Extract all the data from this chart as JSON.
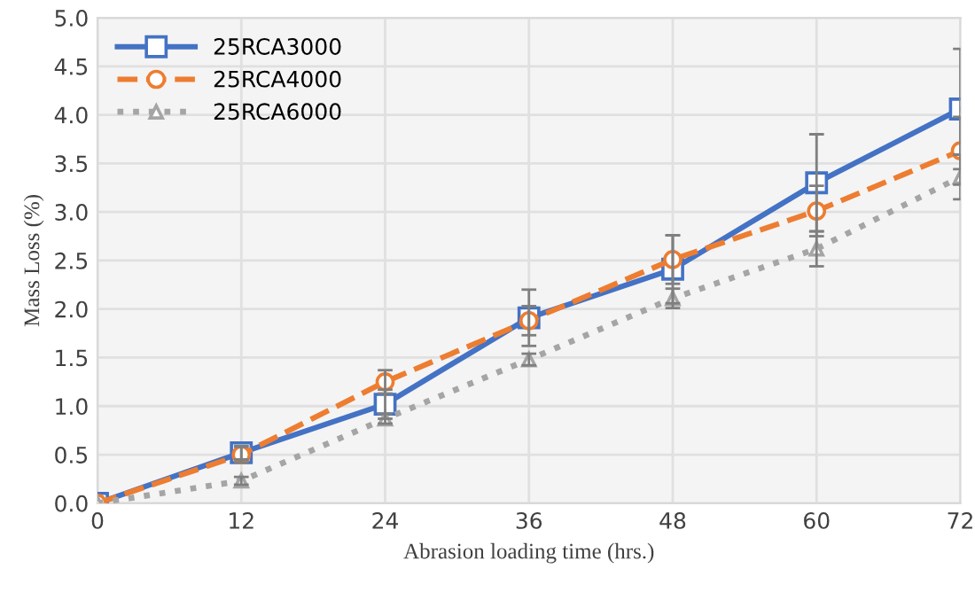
{
  "chart_data": {
    "type": "line",
    "xlabel": "Abrasion loading time (hrs.)",
    "ylabel": "Mass Loss (%)",
    "x": [
      0,
      12,
      24,
      36,
      48,
      60,
      72
    ],
    "xlim": [
      0,
      72
    ],
    "xticks": [
      0,
      12,
      24,
      36,
      48,
      60,
      72
    ],
    "ylim": [
      0,
      5
    ],
    "yticks": [
      {
        "value": 0,
        "label": "0.0"
      },
      {
        "value": 0.5,
        "label": "0.5"
      },
      {
        "value": 1,
        "label": "1.0"
      },
      {
        "value": 1.5,
        "label": "1.5"
      },
      {
        "value": 2,
        "label": "2.0"
      },
      {
        "value": 2.5,
        "label": "2.5"
      },
      {
        "value": 3,
        "label": "3.0"
      },
      {
        "value": 3.5,
        "label": "3.5"
      },
      {
        "value": 4,
        "label": "4.0"
      },
      {
        "value": 4.5,
        "label": "4.5"
      },
      {
        "value": 5,
        "label": "5.0"
      }
    ],
    "grid": true,
    "legend": "top left",
    "series": [
      {
        "name": "25RCA3000",
        "color": "#4472c4",
        "marker": "square",
        "line_style": "solid",
        "values": [
          0,
          0.52,
          1.02,
          1.91,
          2.41,
          3.3,
          4.06
        ],
        "errors": [
          null,
          0.07,
          0.15,
          0.29,
          0.35,
          0.5,
          0.62
        ]
      },
      {
        "name": "25RCA4000",
        "color": "#ed7d31",
        "marker": "circle",
        "line_style": "dashed",
        "values": [
          0,
          0.5,
          1.25,
          1.88,
          2.51,
          3.01,
          3.63
        ],
        "errors": [
          null,
          0.08,
          0.12,
          0.15,
          0.25,
          0.26,
          0.35
        ]
      },
      {
        "name": "25RCA6000",
        "color": "#a5a5a5",
        "marker": "triangle",
        "line_style": "dotted",
        "values": [
          0,
          0.23,
          0.87,
          1.48,
          2.11,
          2.62,
          3.36
        ],
        "errors": [
          null,
          0.04,
          0.05,
          0.06,
          0.1,
          0.18,
          0.23
        ]
      }
    ]
  }
}
